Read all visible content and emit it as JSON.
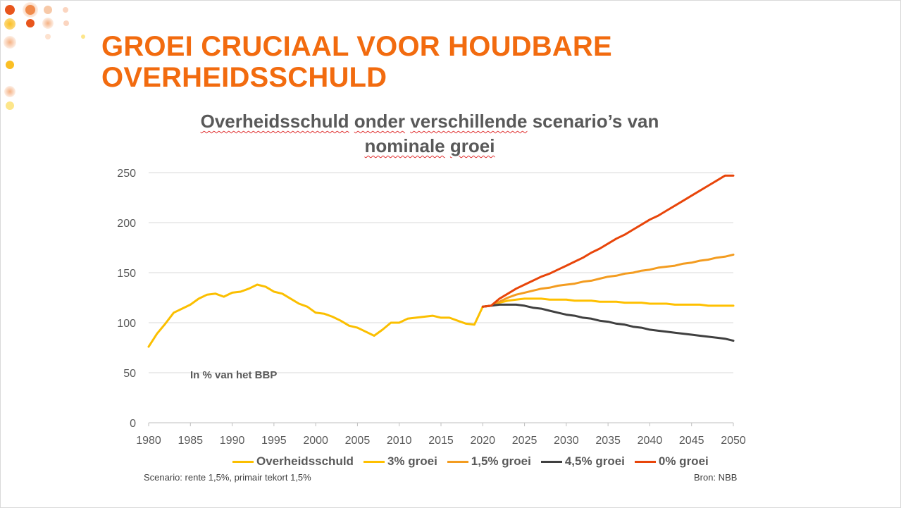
{
  "slide": {
    "title_line1": "GROEI CRUCIAAL VOOR HOUDBARE",
    "title_line2": "OVERHEIDSSCHULD",
    "accent_color": "#f26b0f"
  },
  "decoration": {
    "dot_colors": [
      "#e8551c",
      "#f08a4b",
      "#f5b183",
      "#f7c9a8",
      "#fbbf24",
      "#fde68a"
    ]
  },
  "chart_data": {
    "type": "line",
    "title_part1": "Overheidsschuld",
    "title_part2": "onder",
    "title_part3": "verschillende",
    "title_part4": "scenario’s van",
    "title_part5": "nominale",
    "title_part6": "groei",
    "unit_label": "In % van het BBP",
    "xlim": [
      1980,
      2050
    ],
    "ylim": [
      0,
      250
    ],
    "x_ticks": [
      "1980",
      "1985",
      "1990",
      "1995",
      "2000",
      "2005",
      "2010",
      "2015",
      "2020",
      "2025",
      "2030",
      "2035",
      "2040",
      "2045",
      "2050"
    ],
    "y_ticks": [
      "0",
      "50",
      "100",
      "150",
      "200",
      "250"
    ],
    "grid": "horizontal",
    "legend_position": "bottom",
    "series": [
      {
        "name": "Overheidsschuld",
        "color": "#fbbf00",
        "x": [
          1980,
          1981,
          1982,
          1983,
          1984,
          1985,
          1986,
          1987,
          1988,
          1989,
          1990,
          1991,
          1992,
          1993,
          1994,
          1995,
          1996,
          1997,
          1998,
          1999,
          2000,
          2001,
          2002,
          2003,
          2004,
          2005,
          2006,
          2007,
          2008,
          2009,
          2010,
          2011,
          2012,
          2013,
          2014,
          2015,
          2016,
          2017,
          2018,
          2019,
          2020
        ],
        "y": [
          76,
          89,
          99,
          110,
          114,
          118,
          124,
          128,
          129,
          126,
          130,
          131,
          134,
          138,
          136,
          131,
          129,
          124,
          119,
          116,
          110,
          109,
          106,
          102,
          97,
          95,
          91,
          87,
          93,
          100,
          100,
          104,
          105,
          106,
          107,
          105,
          105,
          102,
          99,
          98,
          116
        ]
      },
      {
        "name": "3% groei",
        "color": "#ffc000",
        "x": [
          2020,
          2021,
          2022,
          2023,
          2024,
          2025,
          2026,
          2027,
          2028,
          2029,
          2030,
          2031,
          2032,
          2033,
          2034,
          2035,
          2036,
          2037,
          2038,
          2039,
          2040,
          2041,
          2042,
          2043,
          2044,
          2045,
          2046,
          2047,
          2048,
          2049,
          2050
        ],
        "y": [
          116,
          117,
          120,
          122,
          123,
          124,
          124,
          124,
          123,
          123,
          123,
          122,
          122,
          122,
          121,
          121,
          121,
          120,
          120,
          120,
          119,
          119,
          119,
          118,
          118,
          118,
          118,
          117,
          117,
          117,
          117
        ]
      },
      {
        "name": "1,5% groei",
        "color": "#f39c20",
        "x": [
          2020,
          2021,
          2022,
          2023,
          2024,
          2025,
          2026,
          2027,
          2028,
          2029,
          2030,
          2031,
          2032,
          2033,
          2034,
          2035,
          2036,
          2037,
          2038,
          2039,
          2040,
          2041,
          2042,
          2043,
          2044,
          2045,
          2046,
          2047,
          2048,
          2049,
          2050
        ],
        "y": [
          116,
          117,
          121,
          125,
          128,
          130,
          132,
          134,
          135,
          137,
          138,
          139,
          141,
          142,
          144,
          146,
          147,
          149,
          150,
          152,
          153,
          155,
          156,
          157,
          159,
          160,
          162,
          163,
          165,
          166,
          168
        ]
      },
      {
        "name": "4,5% groei",
        "color": "#404040",
        "x": [
          2020,
          2021,
          2022,
          2023,
          2024,
          2025,
          2026,
          2027,
          2028,
          2029,
          2030,
          2031,
          2032,
          2033,
          2034,
          2035,
          2036,
          2037,
          2038,
          2039,
          2040,
          2041,
          2042,
          2043,
          2044,
          2045,
          2046,
          2047,
          2048,
          2049,
          2050
        ],
        "y": [
          116,
          117,
          118,
          118,
          118,
          117,
          115,
          114,
          112,
          110,
          108,
          107,
          105,
          104,
          102,
          101,
          99,
          98,
          96,
          95,
          93,
          92,
          91,
          90,
          89,
          88,
          87,
          86,
          85,
          84,
          82
        ]
      },
      {
        "name": "0% groei",
        "color": "#e8450a",
        "x": [
          2020,
          2021,
          2022,
          2023,
          2024,
          2025,
          2026,
          2027,
          2028,
          2029,
          2030,
          2031,
          2032,
          2033,
          2034,
          2035,
          2036,
          2037,
          2038,
          2039,
          2040,
          2041,
          2042,
          2043,
          2044,
          2045,
          2046,
          2047,
          2048,
          2049,
          2050
        ],
        "y": [
          116,
          117,
          124,
          129,
          134,
          138,
          142,
          146,
          149,
          153,
          157,
          161,
          165,
          170,
          174,
          179,
          184,
          188,
          193,
          198,
          203,
          207,
          212,
          217,
          222,
          227,
          232,
          237,
          242,
          247,
          247
        ]
      }
    ]
  },
  "footnotes": {
    "scenario": "Scenario: rente 1,5%, primair tekort 1,5%",
    "source": "Bron: NBB"
  }
}
